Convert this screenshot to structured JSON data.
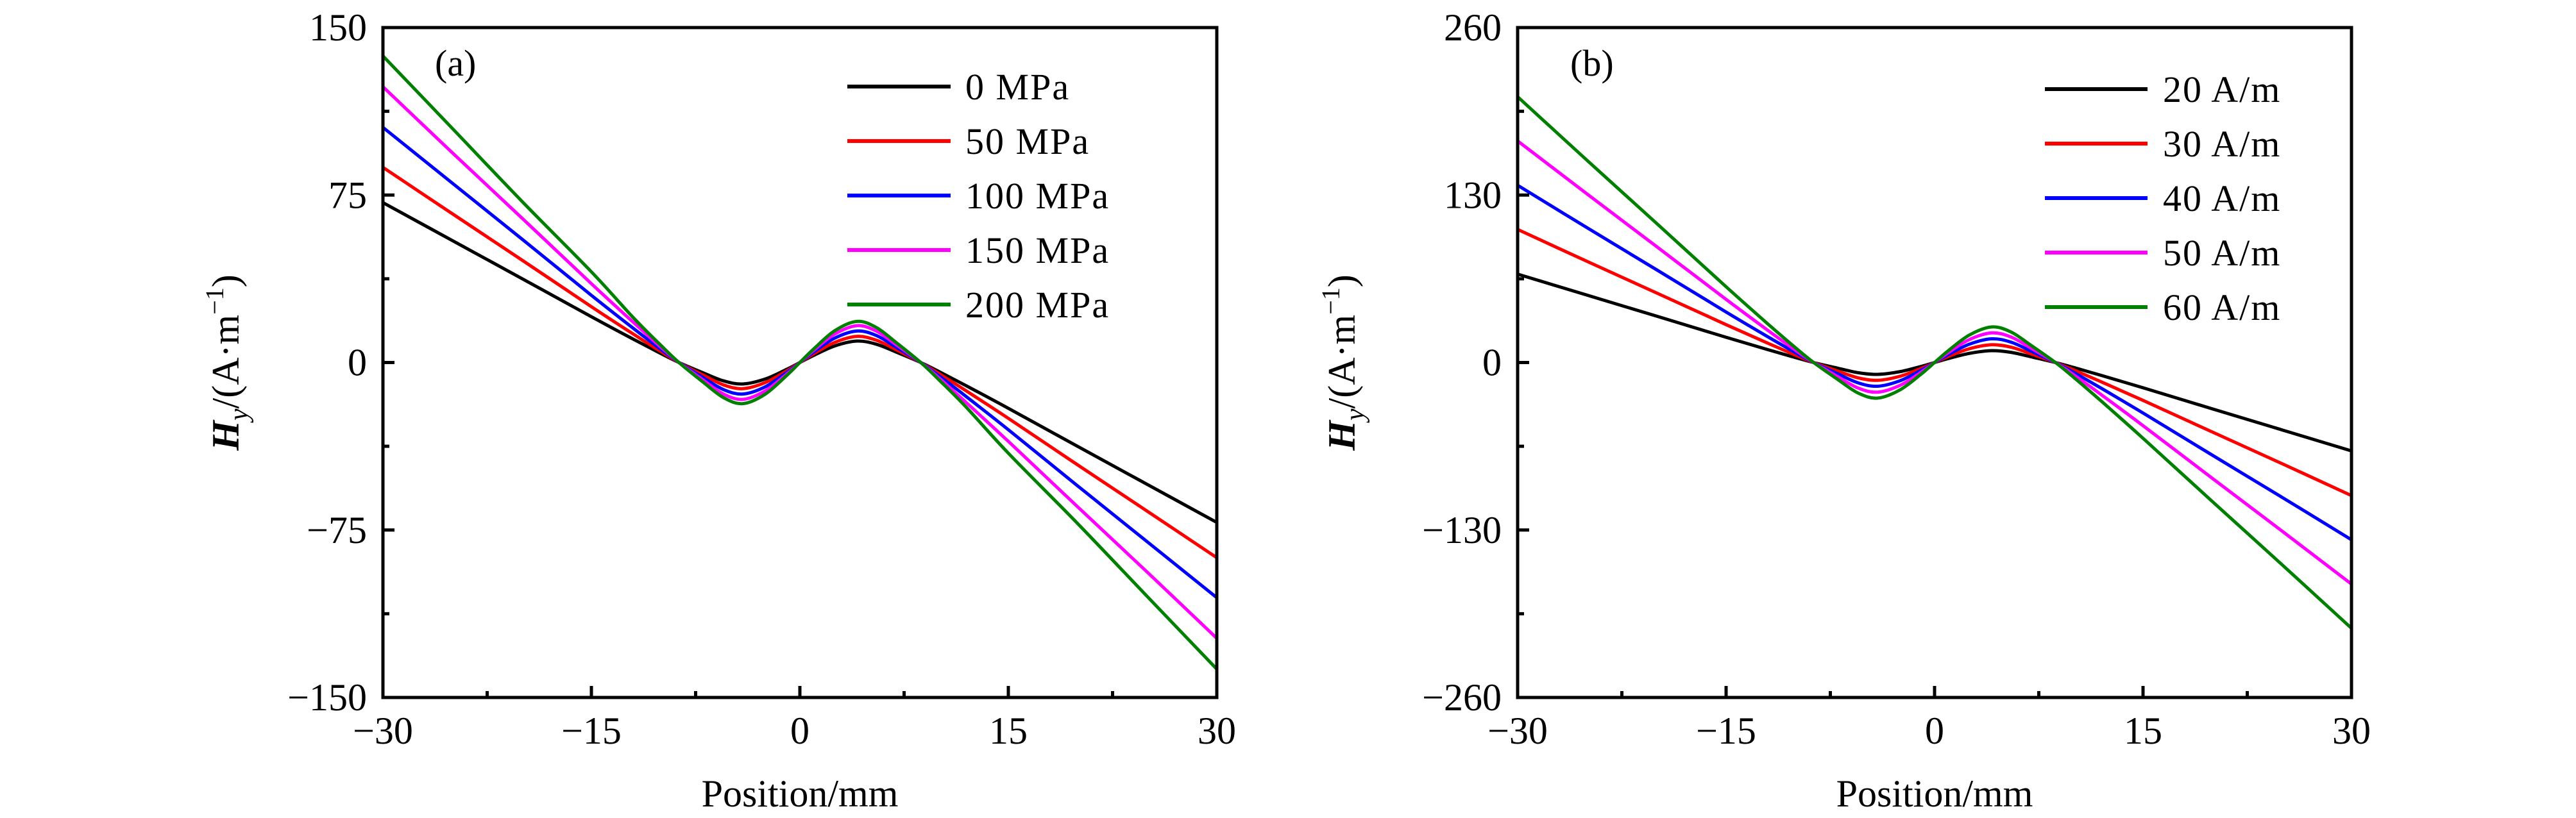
{
  "chart_data": [
    {
      "type": "line",
      "panel_label": "(a)",
      "xlabel": "Position/mm",
      "ylabel": {
        "main": "H",
        "sub": "y",
        "unit_prefix": "/(A·m",
        "unit_exp": "−1",
        "unit_suffix": ")"
      },
      "xlim": [
        -30,
        30
      ],
      "ylim": [
        -150,
        150
      ],
      "xticks": [
        -30,
        -15,
        0,
        15,
        30
      ],
      "xtick_labels": [
        "−30",
        "−15",
        "0",
        "15",
        "30"
      ],
      "xminor": [
        -22.5,
        -7.5,
        7.5,
        22.5
      ],
      "yticks": [
        -150,
        -75,
        0,
        75,
        150
      ],
      "ytick_labels": [
        "−150",
        "−75",
        "0",
        "75",
        "150"
      ],
      "yminor": [
        -112.5,
        -37.5,
        37.5,
        112.5
      ],
      "grid": false,
      "legend_position": "top-right",
      "x": [
        -30,
        -25,
        -20,
        -15,
        -12,
        -10,
        -8.7,
        -7,
        -5.5,
        -4.1,
        -2.5,
        -1,
        0,
        1,
        2.5,
        4.1,
        5.5,
        7,
        8.7,
        10,
        12,
        15,
        20,
        25,
        30
      ],
      "series": [
        {
          "name": "0 MPa",
          "color": "#000000",
          "values": [
            71.6,
            54.6,
            37.6,
            20.5,
            10.5,
            4.0,
            0,
            -4.5,
            -8.2,
            -9.6,
            -7.4,
            -3.2,
            0,
            3.2,
            7.4,
            9.6,
            8.2,
            4.5,
            0,
            -4.0,
            -10.5,
            -20.5,
            -37.6,
            -54.6,
            -71.6
          ]
        },
        {
          "name": "50 MPa",
          "color": "#ff0000",
          "values": [
            87.4,
            66.6,
            45.9,
            25.0,
            12.8,
            4.9,
            0,
            -5.5,
            -10.0,
            -11.7,
            -9.0,
            -3.9,
            0,
            3.9,
            9.0,
            11.7,
            10.0,
            5.5,
            0,
            -4.9,
            -12.8,
            -25.0,
            -45.9,
            -66.6,
            -87.4
          ]
        },
        {
          "name": "100 MPa",
          "color": "#0000ff",
          "values": [
            105.3,
            80.3,
            55.3,
            30.1,
            15.4,
            5.9,
            0,
            -6.6,
            -12.1,
            -14.1,
            -10.9,
            -4.7,
            0,
            4.7,
            10.9,
            14.1,
            12.1,
            6.6,
            0,
            -5.9,
            -15.4,
            -30.1,
            -55.3,
            -80.3,
            -105.3
          ]
        },
        {
          "name": "150 MPa",
          "color": "#ff00ff",
          "values": [
            123.5,
            93.9,
            64.7,
            35.3,
            18.1,
            6.9,
            0,
            -7.7,
            -14.1,
            -16.5,
            -12.7,
            -5.5,
            0,
            5.5,
            12.7,
            16.5,
            14.1,
            7.7,
            0,
            -6.9,
            -18.1,
            -35.3,
            -64.7,
            -93.9,
            -123.5
          ]
        },
        {
          "name": "200 MPa",
          "color": "#008000",
          "values": [
            137.3,
            104.8,
            72.2,
            40.6,
            20.2,
            7.7,
            0,
            -8.6,
            -15.7,
            -18.4,
            -14.2,
            -6.1,
            0,
            6.1,
            14.2,
            18.4,
            15.7,
            8.6,
            0,
            -7.7,
            -20.2,
            -40.6,
            -72.2,
            -104.8,
            -137.3
          ]
        }
      ]
    },
    {
      "type": "line",
      "panel_label": "(b)",
      "xlabel": "Position/mm",
      "ylabel": {
        "main": "H",
        "sub": "y",
        "unit_prefix": "/(A·m",
        "unit_exp": "−1",
        "unit_suffix": ")"
      },
      "xlim": [
        -30,
        30
      ],
      "ylim": [
        -260,
        260
      ],
      "xticks": [
        -30,
        -15,
        0,
        15,
        30
      ],
      "xtick_labels": [
        "−30",
        "−15",
        "0",
        "15",
        "30"
      ],
      "xminor": [
        -22.5,
        -7.5,
        7.5,
        22.5
      ],
      "yticks": [
        -260,
        -130,
        0,
        130,
        260
      ],
      "ytick_labels": [
        "−260",
        "−130",
        "0",
        "130",
        "260"
      ],
      "yminor": [
        -195,
        -65,
        65,
        195
      ],
      "grid": false,
      "legend_position": "top-right",
      "x": [
        -30,
        -25,
        -20,
        -15,
        -12,
        -10,
        -8.7,
        -7,
        -5.5,
        -4.1,
        -2.5,
        -1,
        0,
        1,
        2.5,
        4.1,
        5.5,
        7,
        8.7,
        10,
        12,
        15,
        20,
        25,
        30
      ],
      "series": [
        {
          "name": "20 A/m",
          "color": "#000000",
          "values": [
            68.6,
            52.3,
            36.0,
            19.6,
            10.0,
            3.8,
            0,
            -4.3,
            -7.9,
            -9.2,
            -7.1,
            -3.1,
            0,
            3.1,
            7.1,
            9.2,
            7.9,
            4.3,
            0,
            -3.8,
            -10.0,
            -19.6,
            -36.0,
            -52.3,
            -68.6
          ]
        },
        {
          "name": "30 A/m",
          "color": "#ff0000",
          "values": [
            103.3,
            78.5,
            54.0,
            29.4,
            15.0,
            5.7,
            0,
            -6.5,
            -11.9,
            -13.8,
            -10.7,
            -4.7,
            0,
            4.7,
            10.7,
            13.8,
            11.9,
            6.5,
            0,
            -5.7,
            -15.0,
            -29.4,
            -54.0,
            -78.5,
            -103.3
          ]
        },
        {
          "name": "40 A/m",
          "color": "#0000ff",
          "values": [
            137.6,
            104.6,
            72.0,
            39.2,
            20.0,
            7.6,
            0,
            -8.6,
            -15.8,
            -18.4,
            -14.2,
            -6.2,
            0,
            6.2,
            14.2,
            18.4,
            15.8,
            8.6,
            0,
            -7.6,
            -20.0,
            -39.2,
            -72.0,
            -104.6,
            -137.6
          ]
        },
        {
          "name": "50 A/m",
          "color": "#ff00ff",
          "values": [
            172.0,
            130.8,
            90.0,
            49.0,
            25.0,
            9.5,
            0,
            -10.8,
            -19.8,
            -23.0,
            -17.8,
            -7.8,
            0,
            7.8,
            17.8,
            23.0,
            19.8,
            10.8,
            0,
            -9.5,
            -25.0,
            -49.0,
            -90.0,
            -130.8,
            -172.0
          ]
        },
        {
          "name": "60 A/m",
          "color": "#008000",
          "values": [
            206.3,
            156.9,
            108.0,
            58.8,
            30.0,
            11.4,
            0,
            -12.9,
            -23.7,
            -27.6,
            -21.3,
            -9.3,
            0,
            9.3,
            21.3,
            27.6,
            23.7,
            12.9,
            0,
            -11.4,
            -30.0,
            -58.8,
            -108.0,
            -156.9,
            -206.3
          ]
        }
      ]
    }
  ]
}
